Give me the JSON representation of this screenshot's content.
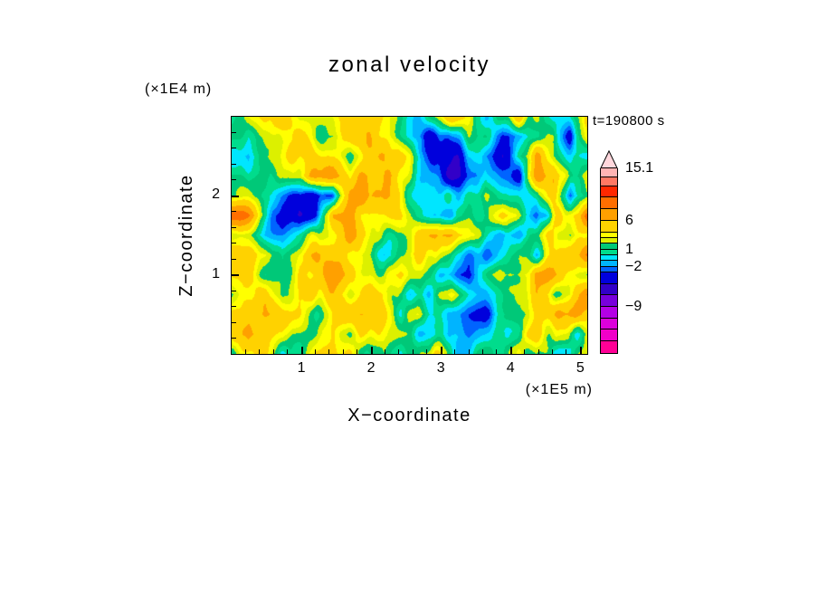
{
  "title": "zonal velocity",
  "time_label": "t=190800 s",
  "x_axis": {
    "label": "X−coordinate",
    "unit": "(×1E5 m)",
    "min": 0,
    "max": 5.1,
    "major_ticks": [
      1,
      2,
      3,
      4,
      5
    ],
    "tick_labels": [
      "1",
      "2",
      "3",
      "4",
      "5"
    ],
    "minor_step": 0.2
  },
  "y_axis": {
    "label": "Z−coordinate",
    "unit": "(×1E4 m)",
    "min": 0,
    "max": 3.0,
    "major_ticks": [
      1,
      2
    ],
    "tick_labels": [
      "1",
      "2"
    ],
    "minor_step": 0.2
  },
  "colorbar": {
    "min": -17,
    "max": 15.1,
    "arrow_color": "#FFD7DC",
    "labels": [
      {
        "value": 15.1,
        "text": "15.1"
      },
      {
        "value": 6,
        "text": "6"
      },
      {
        "value": 1,
        "text": "1"
      },
      {
        "value": -2,
        "text": "−2"
      },
      {
        "value": -9,
        "text": "−9"
      }
    ]
  },
  "chart_data": {
    "type": "heatmap",
    "title": "zonal velocity",
    "xlabel": "X−coordinate (×1E5 m)",
    "ylabel": "Z−coordinate (×1E4 m)",
    "annotation": "t=190800 s",
    "x_range": [
      0,
      5.1
    ],
    "y_range": [
      0,
      3.0
    ],
    "levels": [
      -17,
      -15,
      -13,
      -11,
      -9,
      -7,
      -5,
      -3,
      -2,
      -1,
      0,
      1,
      2,
      3,
      4,
      6,
      8,
      10,
      12,
      13.5,
      15.1
    ],
    "colors": [
      "#FF0096",
      "#F000C8",
      "#DC00DC",
      "#B400E6",
      "#7800DC",
      "#3200C8",
      "#0000DC",
      "#0064FF",
      "#00B4FF",
      "#00E6FF",
      "#00DC8C",
      "#00C878",
      "#DCF000",
      "#FFFF00",
      "#FFD200",
      "#FFA000",
      "#FF6E00",
      "#FF2800",
      "#FF7864",
      "#FFB4B4"
    ],
    "grid_note": "approximate values sampled on a coarse grid, rows top-to-bottom",
    "grid": [
      [
        -0.8,
        1.2,
        4,
        4.5,
        1.2,
        1.2,
        4,
        4.5,
        5,
        4,
        1.2,
        -0.8,
        1.2,
        4,
        1.2,
        -0.8,
        1.2,
        4,
        1.2,
        -0.8,
        1.2,
        4
      ],
      [
        1.2,
        -0.8,
        1.2,
        4,
        4,
        1.2,
        1.2,
        4,
        5,
        4,
        1.2,
        -2.6,
        -4.2,
        -0.8,
        1.2,
        -0.8,
        -4.2,
        -2.6,
        1.2,
        4,
        -2.6,
        5
      ],
      [
        -0.8,
        -2.6,
        1.2,
        4,
        4.5,
        4.5,
        4,
        1.2,
        5,
        7,
        4,
        1.2,
        -4.2,
        -4.2,
        -0.8,
        -2.6,
        -4.2,
        1.2,
        7,
        4,
        1.2,
        -0.8
      ],
      [
        1.2,
        -0.8,
        1.2,
        1.2,
        4,
        7,
        7,
        4.5,
        7,
        7,
        4,
        1.2,
        -0.8,
        -4.2,
        -2.6,
        1.2,
        -0.8,
        -2.6,
        7,
        7,
        1.2,
        4
      ],
      [
        -0.8,
        1.2,
        -0.8,
        -2.6,
        -4.5,
        -4.5,
        -2.6,
        7,
        7.5,
        7,
        4,
        1.2,
        1.2,
        -0.8,
        1.2,
        4,
        1.2,
        -0.8,
        1.2,
        7,
        -2.6,
        1.2
      ],
      [
        8.8,
        7,
        1.2,
        -4.5,
        -4.5,
        -2.6,
        7,
        7,
        4.5,
        4,
        4,
        1.2,
        -0.8,
        -0.8,
        1.2,
        1.2,
        4,
        1.2,
        -4.2,
        1.2,
        4,
        7
      ],
      [
        1.2,
        1.2,
        -0.8,
        -0.8,
        1.2,
        4,
        4.5,
        7,
        4,
        1.2,
        1.2,
        4,
        7,
        7,
        4,
        1.2,
        -2.6,
        -4.2,
        1.2,
        4,
        1.2,
        4
      ],
      [
        4,
        4.5,
        4,
        1.2,
        4,
        7,
        4,
        4,
        1.2,
        -0.8,
        1.2,
        4,
        4,
        1.2,
        -0.8,
        -2.6,
        -0.8,
        1.2,
        -0.8,
        4,
        7,
        7
      ],
      [
        4,
        4,
        1.2,
        1.2,
        4,
        4,
        7,
        4,
        1.2,
        1.2,
        4,
        1.2,
        1.2,
        -0.8,
        -4.2,
        -0.8,
        1.2,
        4,
        7,
        7,
        4,
        1.2
      ],
      [
        1.2,
        4,
        4,
        1.2,
        4,
        4,
        4,
        1.2,
        4,
        4,
        1.2,
        -0.8,
        1.2,
        4,
        -0.8,
        -2.6,
        -0.8,
        1.2,
        7,
        4,
        4,
        7
      ],
      [
        4,
        5,
        7,
        5,
        4,
        1.2,
        4,
        4,
        5,
        4,
        1.2,
        4,
        1.2,
        -0.8,
        -2.6,
        -4.2,
        -0.8,
        1.2,
        7,
        7,
        7,
        4
      ],
      [
        4,
        7,
        5,
        4,
        1.2,
        1.2,
        4,
        1.2,
        4,
        4,
        4,
        1.2,
        -0.8,
        -0.8,
        -2.6,
        -0.8,
        1.2,
        4,
        7,
        4,
        1.2,
        1.2
      ],
      [
        1.2,
        4,
        4,
        1.2,
        1.2,
        4,
        4,
        4,
        1.2,
        4,
        1.2,
        1.2,
        4,
        -0.8,
        -0.8,
        1.2,
        1.2,
        4,
        4,
        1.2,
        1.2,
        4
      ]
    ],
    "texture": {
      "seed": 11,
      "octaves": [
        {
          "fx": 6,
          "fy": 4,
          "shear": 2.0,
          "amp": 1.5,
          "right_boost": 0
        },
        {
          "fx": 14,
          "fy": 9,
          "shear": 0.8,
          "amp": 1.0,
          "right_boost": 0
        },
        {
          "fx": 36,
          "fy": 12,
          "shear": 0,
          "amp": 0.8,
          "right_boost": 1.2
        }
      ]
    }
  }
}
